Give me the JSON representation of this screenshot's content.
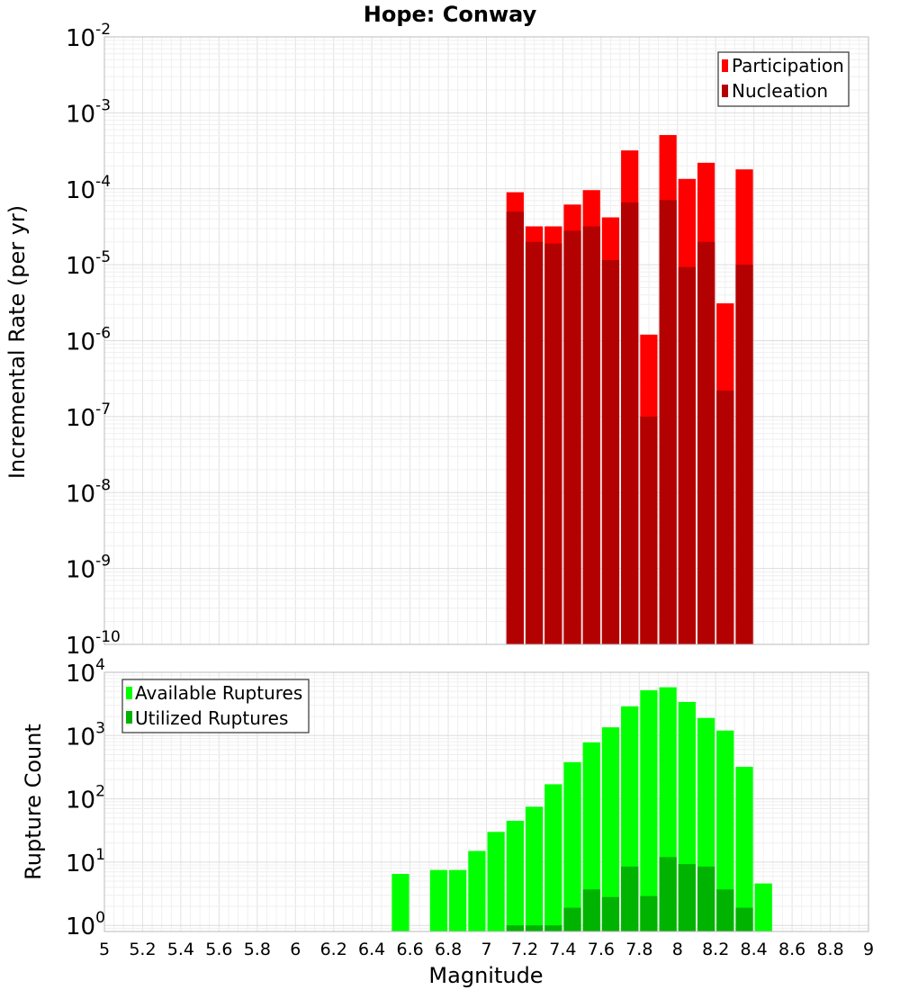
{
  "chart_data": [
    {
      "type": "bar",
      "title": "Hope: Conway",
      "xlabel": "",
      "ylabel": "Incremental Rate (per yr)",
      "yscale": "log",
      "ylim": [
        1e-10,
        0.01
      ],
      "xlim": [
        5,
        9
      ],
      "bin_width": 0.1,
      "grid": true,
      "legend_position": "top-right",
      "ytick_labels": [
        {
          "base": "10",
          "exp": "-10"
        },
        {
          "base": "10",
          "exp": "-9"
        },
        {
          "base": "10",
          "exp": "-8"
        },
        {
          "base": "10",
          "exp": "-7"
        },
        {
          "base": "10",
          "exp": "-6"
        },
        {
          "base": "10",
          "exp": "-5"
        },
        {
          "base": "10",
          "exp": "-4"
        },
        {
          "base": "10",
          "exp": "-3"
        },
        {
          "base": "10",
          "exp": "-2"
        }
      ],
      "series": [
        {
          "name": "Participation",
          "color": "#ff0000",
          "x": [
            7.1,
            7.2,
            7.3,
            7.4,
            7.5,
            7.6,
            7.7,
            7.8,
            7.9,
            8.0,
            8.1,
            8.2,
            8.3
          ],
          "values": [
            9e-05,
            3.2e-05,
            3.2e-05,
            6.2e-05,
            9.6e-05,
            4.2e-05,
            0.00032,
            1.2e-06,
            0.00051,
            0.000135,
            0.00022,
            3.1e-06,
            0.00018
          ]
        },
        {
          "name": "Nucleation",
          "color": "#b30000",
          "x": [
            7.1,
            7.2,
            7.3,
            7.4,
            7.5,
            7.6,
            7.7,
            7.8,
            7.9,
            8.0,
            8.1,
            8.2,
            8.3
          ],
          "values": [
            5e-05,
            2e-05,
            1.9e-05,
            2.8e-05,
            3.2e-05,
            1.15e-05,
            6.6e-05,
            1e-07,
            7.1e-05,
            9.3e-06,
            2e-05,
            2.2e-07,
            1e-05
          ]
        }
      ]
    },
    {
      "type": "bar",
      "title": "",
      "xlabel": "Magnitude",
      "ylabel": "Rupture Count",
      "yscale": "log",
      "ylim": [
        0.8,
        10000
      ],
      "xlim": [
        5,
        9
      ],
      "bin_width": 0.1,
      "grid": true,
      "legend_position": "top-left",
      "xtick_labels": [
        "5",
        "5.2",
        "5.4",
        "5.6",
        "5.8",
        "6",
        "6.2",
        "6.4",
        "6.6",
        "6.8",
        "7",
        "7.2",
        "7.4",
        "7.6",
        "7.8",
        "8",
        "8.2",
        "8.4",
        "8.6",
        "8.8",
        "9"
      ],
      "ytick_labels": [
        {
          "base": "10",
          "exp": "0"
        },
        {
          "base": "10",
          "exp": "1"
        },
        {
          "base": "10",
          "exp": "2"
        },
        {
          "base": "10",
          "exp": "3"
        },
        {
          "base": "10",
          "exp": "4"
        }
      ],
      "series": [
        {
          "name": "Available Ruptures",
          "color": "#00ff00",
          "x": [
            6.5,
            6.7,
            6.8,
            6.9,
            7.0,
            7.1,
            7.2,
            7.3,
            7.4,
            7.5,
            7.6,
            7.7,
            7.8,
            7.9,
            8.0,
            8.1,
            8.2,
            8.3,
            8.4
          ],
          "values": [
            6.5,
            7.5,
            7.5,
            15,
            30,
            45,
            75,
            170,
            380,
            780,
            1350,
            2900,
            5200,
            5800,
            3400,
            1900,
            1200,
            320,
            4.6
          ]
        },
        {
          "name": "Utilized Ruptures",
          "color": "#00b300",
          "x": [
            7.1,
            7.2,
            7.3,
            7.4,
            7.5,
            7.6,
            7.7,
            7.8,
            7.9,
            8.0,
            8.1,
            8.2,
            8.3
          ],
          "values": [
            1,
            1,
            1,
            1.9,
            3.7,
            2.8,
            8.5,
            2.9,
            12,
            9.3,
            8.5,
            3.7,
            1.9
          ]
        }
      ]
    }
  ]
}
